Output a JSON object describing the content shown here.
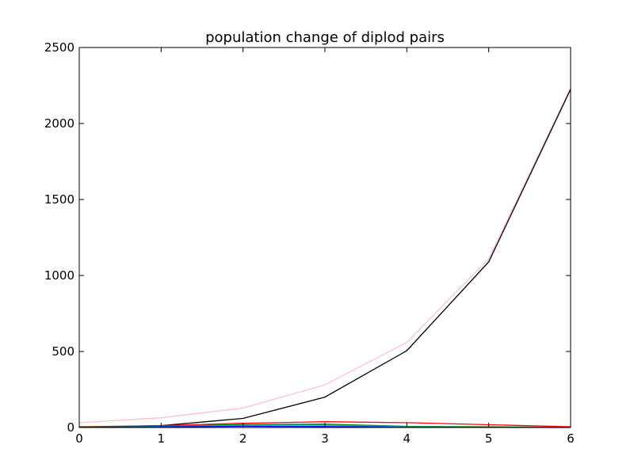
{
  "chart_data": {
    "type": "line",
    "title": "population change of diplod pairs",
    "xlabel": "",
    "ylabel": "",
    "xlim": [
      0,
      6
    ],
    "ylim": [
      0,
      2500
    ],
    "grid": false,
    "x": [
      0,
      1,
      2,
      3,
      4,
      5,
      6
    ],
    "x_ticks": [
      "0",
      "1",
      "2",
      "3",
      "4",
      "5",
      "6"
    ],
    "y_ticks": [
      0,
      500,
      1000,
      1500,
      2000,
      2500
    ],
    "series": [
      {
        "color": "#ffc0cb",
        "values": [
          32,
          64,
          128,
          280,
          560,
          1110,
          2235
        ]
      },
      {
        "color": "#000000",
        "values": [
          2,
          12,
          60,
          200,
          505,
          1090,
          2225
        ]
      },
      {
        "color": "#ff0000",
        "values": [
          5,
          12,
          28,
          38,
          32,
          18,
          5
        ]
      },
      {
        "color": "#008000",
        "values": [
          3,
          8,
          20,
          22,
          8,
          4,
          1
        ]
      },
      {
        "color": "#00bfbf",
        "values": [
          2,
          6,
          14,
          15,
          5,
          2,
          1
        ]
      },
      {
        "color": "#0000ff",
        "values": [
          1,
          4,
          8,
          6,
          2,
          1,
          0
        ]
      }
    ]
  }
}
